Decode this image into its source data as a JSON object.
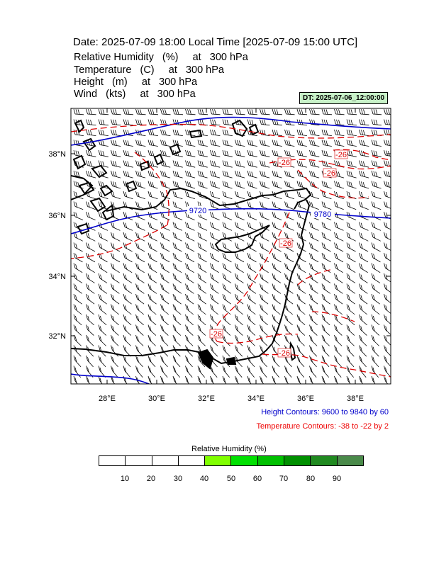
{
  "title": "Date: 2025-07-09  18:00 Local Time [2025-07-09  15:00 UTC]",
  "fields": [
    "Relative Humidity   (%)     at   300 hPa",
    "Temperature   (C)     at   300 hPa",
    "Height   (m)     at   300 hPa",
    "Wind   (kts)     at   300 hPa"
  ],
  "dt_badge": "DT: 2025-07-06_12:00:00",
  "map": {
    "lat_labels": [
      "38°N",
      "36°N",
      "34°N",
      "32°N"
    ],
    "lon_labels": [
      "28°E",
      "30°E",
      "32°E",
      "34°E",
      "36°E",
      "38°E"
    ],
    "height_contour_labels": [
      "9720",
      "9780"
    ],
    "temperature_contour_labels": [
      "-26",
      "-26",
      "-26",
      "-26",
      "-26",
      "-26"
    ],
    "colors": {
      "height": "#0000cc",
      "temperature": "#dd0000",
      "coast": "#000000",
      "barb": "#000000"
    }
  },
  "notes": {
    "height": "Height Contours: 9600 to 9840 by 60",
    "temperature": "Temperature Contours: -38 to -22 by 2",
    "height_color": "#0000cc",
    "temperature_color": "#ee0000"
  },
  "legend": {
    "title": "Relative Humidity  (%)",
    "labels": [
      "10",
      "20",
      "30",
      "40",
      "50",
      "60",
      "70",
      "80",
      "90"
    ],
    "colors": [
      "#ffffff",
      "#ffffff",
      "#ffffff",
      "#ffffff",
      "#80ff00",
      "#00e000",
      "#00c000",
      "#009000",
      "#208a20",
      "#4a8a4a"
    ]
  }
}
